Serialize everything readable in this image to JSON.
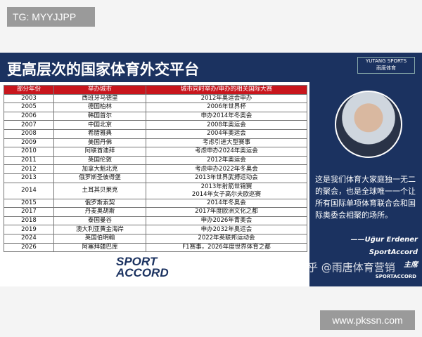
{
  "badge": "TG: MYYJJPP",
  "slide": {
    "title": "更高层次的国家体育外交平台",
    "logo": {
      "name": "YUTANG SPORTS",
      "cn": "雨唐体育"
    },
    "table": {
      "headers": [
        "部分年份",
        "举办城市",
        "城市同时举办/申办的相关国际大赛"
      ],
      "rows": [
        [
          "2003",
          "西班牙马德里",
          [
            "2012年奥运会申办"
          ]
        ],
        [
          "2005",
          "德国柏林",
          [
            "2006年世界杯"
          ]
        ],
        [
          "2006",
          "韩国首尔",
          [
            "申办2014年冬奥会"
          ]
        ],
        [
          "2007",
          "中国北京",
          [
            "2008年奥运会"
          ]
        ],
        [
          "2008",
          "希腊雅典",
          [
            "2004年奥运会"
          ]
        ],
        [
          "2009",
          "美国丹佛",
          [
            "考虑引进大型赛事"
          ]
        ],
        [
          "2010",
          "阿联酋迪拜",
          [
            "考虑申办2024年奥运会"
          ]
        ],
        [
          "2011",
          "英国伦敦",
          [
            "2012年奥运会"
          ]
        ],
        [
          "2012",
          "加拿大魁北克",
          [
            "考虑申办2022年冬奥会"
          ]
        ],
        [
          "2013",
          "俄罗斯圣彼得堡",
          [
            "2013年世界武搏运动会"
          ]
        ],
        [
          "2014",
          "土耳其贝莱克",
          [
            "2013年射箭世锦赛",
            "2014年女子高尔夫欧巡赛"
          ]
        ],
        [
          "2015",
          "俄罗斯索契",
          [
            "2014年冬奥会"
          ]
        ],
        [
          "2017",
          "丹麦奥胡斯",
          [
            "2017年度欧洲文化之都"
          ]
        ],
        [
          "2018",
          "泰国曼谷",
          [
            "申办2026年青奥会"
          ]
        ],
        [
          "2019",
          "澳大利亚黄金海岸",
          [
            "申办2032年奥运会"
          ]
        ],
        [
          "2024",
          "英国伯明翰",
          [
            "2022年英联邦运动会"
          ]
        ],
        [
          "2026",
          "阿塞拜疆巴库",
          [
            "F1赛事，2026年度世界体育之都"
          ]
        ]
      ]
    },
    "sport_logo": [
      "SPORT",
      "ACCORD"
    ],
    "quote": [
      "这是我们体育大家庭独一无二",
      "的聚会，也是全球唯一一个让",
      "所有国际单项体育联合会和国",
      "际奥委会相聚的场所。"
    ],
    "attribution": [
      "——Uğur Erdener",
      "SportAccord",
      "主席"
    ],
    "corner_logo": "SPORTACCORD"
  },
  "watermark": "知乎 @雨唐体育营销",
  "site": "www.pkssn.com"
}
